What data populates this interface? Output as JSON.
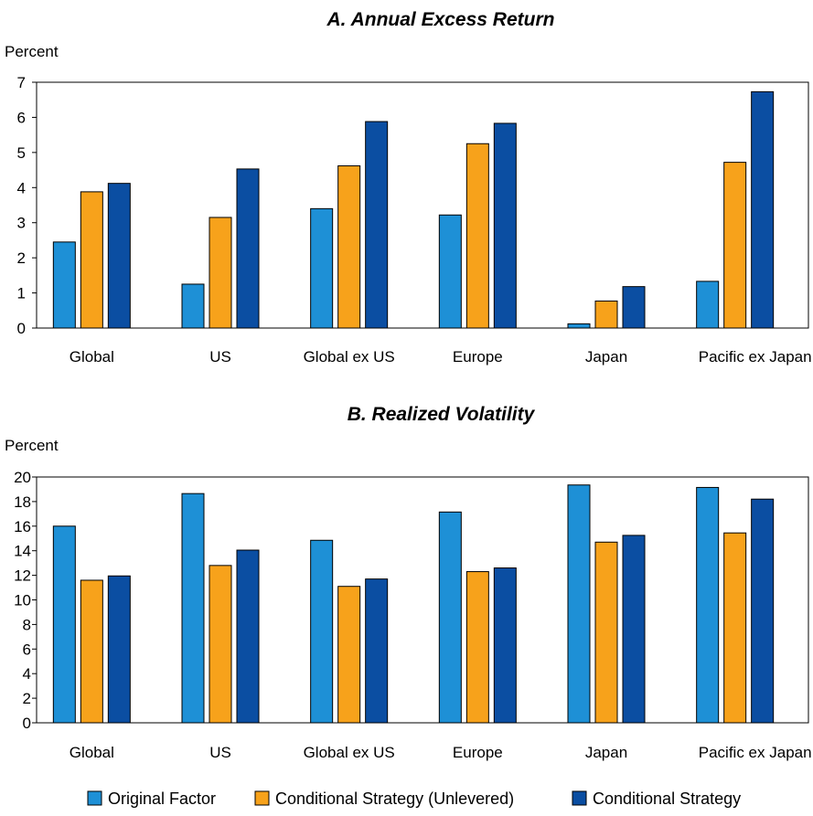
{
  "chart_data": [
    {
      "type": "bar",
      "title": "A. Annual Excess Return",
      "ylabel": "Percent",
      "xlabel": "",
      "ylim": [
        0,
        7
      ],
      "yticks": [
        0,
        1,
        2,
        3,
        4,
        5,
        6,
        7
      ],
      "categories": [
        "Global",
        "US",
        "Global ex US",
        "Europe",
        "Japan",
        "Pacific ex Japan"
      ],
      "series": [
        {
          "name": "Original Factor",
          "color": "#1e90d6",
          "values": [
            2.45,
            1.25,
            3.4,
            3.22,
            0.12,
            1.33
          ]
        },
        {
          "name": "Conditional Strategy (Unlevered)",
          "color": "#f7a21b",
          "values": [
            3.88,
            3.15,
            4.62,
            5.25,
            0.77,
            4.72
          ]
        },
        {
          "name": "Conditional Strategy",
          "color": "#0b4ea2",
          "values": [
            4.12,
            4.53,
            5.88,
            5.83,
            1.18,
            6.73
          ]
        }
      ],
      "grid": false
    },
    {
      "type": "bar",
      "title": "B. Realized Volatility",
      "ylabel": "Percent",
      "xlabel": "",
      "ylim": [
        0,
        20
      ],
      "yticks": [
        0,
        2,
        4,
        6,
        8,
        10,
        12,
        14,
        16,
        18,
        20
      ],
      "categories": [
        "Global",
        "US",
        "Global ex US",
        "Europe",
        "Japan",
        "Pacific ex Japan"
      ],
      "series": [
        {
          "name": "Original Factor",
          "color": "#1e90d6",
          "values": [
            16.0,
            18.65,
            14.85,
            17.15,
            19.35,
            19.15
          ]
        },
        {
          "name": "Conditional Strategy (Unlevered)",
          "color": "#f7a21b",
          "values": [
            11.6,
            12.8,
            11.1,
            12.3,
            14.7,
            15.45
          ]
        },
        {
          "name": "Conditional Strategy",
          "color": "#0b4ea2",
          "values": [
            11.95,
            14.05,
            11.7,
            12.6,
            15.25,
            18.2
          ]
        }
      ],
      "grid": false
    }
  ],
  "legend": {
    "placement": "bottom",
    "items": [
      "Original Factor",
      "Conditional Strategy (Unlevered)",
      "Conditional Strategy"
    ]
  }
}
